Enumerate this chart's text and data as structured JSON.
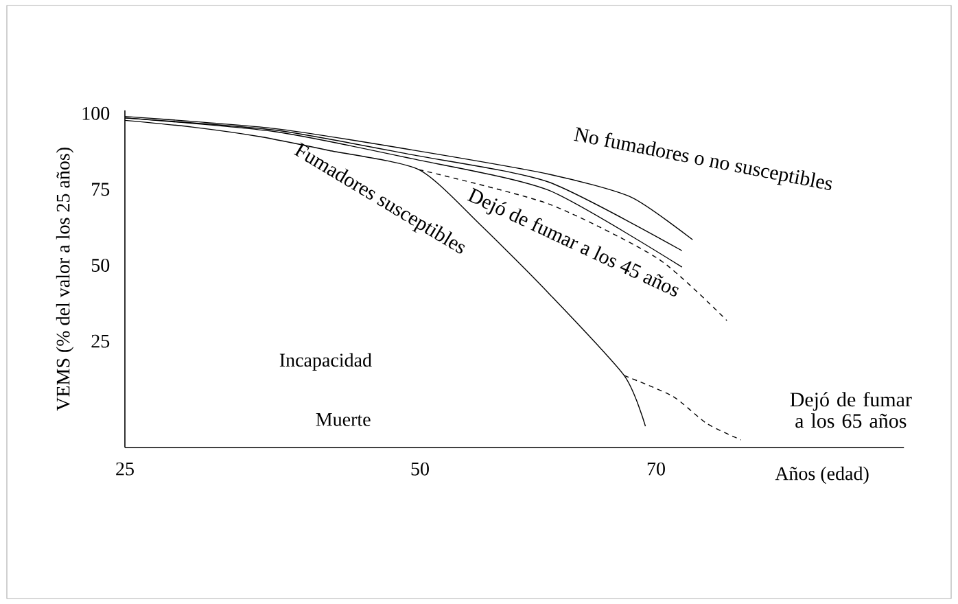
{
  "chart_data": {
    "type": "line",
    "xlabel": "Años (edad)",
    "ylabel": "VEMS (% del valor a los 25 años)",
    "xlim": [
      25,
      91
    ],
    "ylim": [
      -10,
      101
    ],
    "xticks": [
      25,
      50,
      70
    ],
    "yticks": [
      25,
      50,
      75,
      100
    ],
    "marker": "none",
    "line_style": "solid",
    "grid": false,
    "series": [
      {
        "name": "No fumadores o no susceptibles",
        "color": "#000000",
        "x": [
          25,
          37.7,
          49.3,
          60.9,
          67.9,
          73.1
        ],
        "values": [
          99,
          95,
          88,
          80,
          72.4,
          58.4
        ]
      },
      {
        "color": "#000000",
        "x": [
          25,
          37.7,
          49.3,
          60.9,
          72.2
        ],
        "values": [
          98.5,
          94.5,
          86.4,
          77.4,
          54.8
        ]
      },
      {
        "color": "#000000",
        "x": [
          25,
          37.7,
          49.3,
          60.9,
          72.2
        ],
        "values": [
          98.5,
          94,
          85.1,
          74.7,
          49.4
        ]
      },
      {
        "name": "Fumadores susceptibles",
        "color": "#000000",
        "x": [
          25,
          30.7,
          36.5,
          42.3,
          49.9,
          55.1,
          60.9,
          67.3,
          69.1
        ],
        "values": [
          97.7,
          95.5,
          92.3,
          87.8,
          81.5,
          63.4,
          40.8,
          13.7,
          -3
        ]
      },
      {
        "name": "Dejó de fumar a los 45 años",
        "color": "#000000",
        "line_style": "dashed",
        "x": [
          49.9,
          60.9,
          70.2,
          76
        ],
        "values": [
          81.5,
          70.2,
          52.1,
          31.8
        ]
      },
      {
        "name": "Dejó de fumar a los 65 años",
        "color": "#000000",
        "line_style": "dashed",
        "x": [
          67.3,
          71.4,
          74.3,
          77.2
        ],
        "values": [
          13.7,
          6.9,
          -2.1,
          -7.5
        ]
      }
    ],
    "annotations": [
      "Incapacidad",
      "Muerte"
    ]
  }
}
